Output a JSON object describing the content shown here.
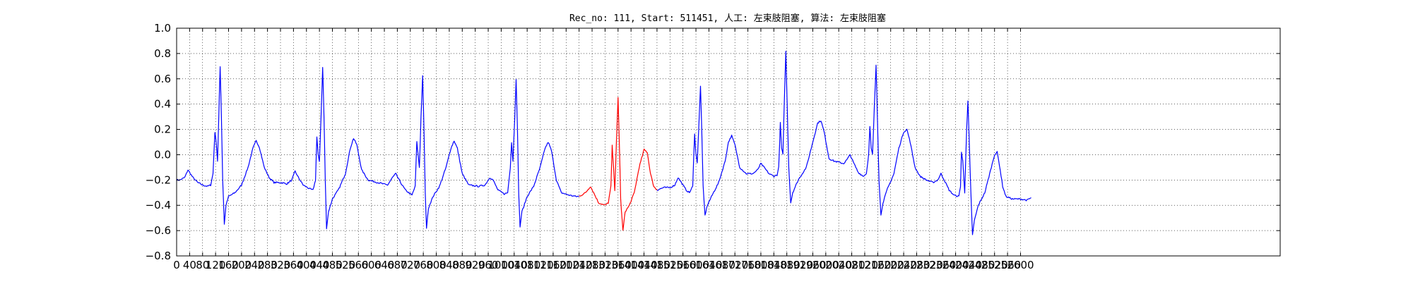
{
  "chart_data": {
    "type": "line",
    "title": "Rec_no: 111, Start: 511451, 人工: 左束肢阻塞, 算法: 左束肢阻塞",
    "xlabel": "",
    "ylabel": "",
    "xlim": [
      0,
      3400
    ],
    "ylim": [
      -0.8,
      1.0
    ],
    "grid": true,
    "grid_style": "dotted",
    "x_tick_values": [
      0,
      40,
      80,
      120,
      160,
      200,
      240,
      280,
      320,
      360,
      400,
      440,
      480,
      520,
      560,
      600,
      640,
      680,
      720,
      760,
      800,
      840,
      880,
      920,
      960,
      1000,
      1040,
      1080,
      1120,
      1160,
      1200,
      1240,
      1280,
      1320,
      1360,
      1400,
      1440,
      1480,
      1520,
      1560,
      1600,
      1640,
      1680,
      1720,
      1760,
      1800,
      1840,
      1880,
      1920,
      1960,
      2000,
      2040,
      2080,
      2120,
      2160,
      2200,
      2240,
      2280,
      2320,
      2360,
      2400,
      2440,
      2480,
      2520,
      2560,
      2600
    ],
    "x_tick_labels": [
      "0",
      "40",
      "80",
      "120",
      "160",
      "200",
      "240",
      "280",
      "320",
      "360",
      "400",
      "440",
      "480",
      "520",
      "560",
      "600",
      "640",
      "680",
      "720",
      "760",
      "800",
      "840",
      "880",
      "920",
      "960",
      "1000",
      "1040",
      "1080",
      "1120",
      "1160",
      "1200",
      "1240",
      "1280",
      "1320",
      "1360",
      "1400",
      "1440",
      "1480",
      "1520",
      "1560",
      "1600",
      "1640",
      "1680",
      "1720",
      "1760",
      "1800",
      "1840",
      "1880",
      "1920",
      "1960",
      "2000",
      "2040",
      "2080",
      "2120",
      "2160",
      "2200",
      "2240",
      "2280",
      "2320",
      "2360",
      "2400",
      "2440",
      "2480",
      "2520",
      "2560",
      "2600"
    ],
    "y_ticks": [
      -0.8,
      -0.6,
      -0.4,
      -0.2,
      0.0,
      0.2,
      0.4,
      0.6,
      0.8,
      1.0
    ],
    "y_tick_labels": [
      "−0.8",
      "−0.6",
      "−0.4",
      "−0.2",
      "0.0",
      "0.2",
      "0.4",
      "0.6",
      "0.8",
      "1.0"
    ],
    "series": [
      {
        "color": "#0000ff",
        "points": [
          [
            0,
            -0.2
          ],
          [
            10,
            -0.2
          ],
          [
            25,
            -0.18
          ],
          [
            35,
            -0.12
          ],
          [
            50,
            -0.18
          ],
          [
            65,
            -0.22
          ],
          [
            80,
            -0.24
          ],
          [
            95,
            -0.25
          ],
          [
            105,
            -0.24
          ],
          [
            112,
            -0.15
          ],
          [
            118,
            0.18
          ],
          [
            122,
            0.1
          ],
          [
            126,
            -0.05
          ],
          [
            130,
            0.3
          ],
          [
            134,
            0.7
          ],
          [
            138,
            0.3
          ],
          [
            142,
            -0.2
          ],
          [
            147,
            -0.55
          ],
          [
            152,
            -0.4
          ],
          [
            160,
            -0.33
          ],
          [
            180,
            -0.3
          ],
          [
            200,
            -0.24
          ],
          [
            220,
            -0.1
          ],
          [
            235,
            0.05
          ],
          [
            245,
            0.11
          ],
          [
            255,
            0.06
          ],
          [
            270,
            -0.1
          ],
          [
            285,
            -0.18
          ],
          [
            300,
            -0.22
          ],
          [
            320,
            -0.22
          ],
          [
            340,
            -0.23
          ],
          [
            355,
            -0.2
          ],
          [
            365,
            -0.13
          ],
          [
            375,
            -0.18
          ],
          [
            390,
            -0.24
          ],
          [
            410,
            -0.27
          ],
          [
            420,
            -0.28
          ],
          [
            428,
            -0.2
          ],
          [
            432,
            0.14
          ],
          [
            436,
            0.0
          ],
          [
            440,
            -0.05
          ],
          [
            445,
            0.3
          ],
          [
            450,
            0.69
          ],
          [
            454,
            0.3
          ],
          [
            458,
            -0.2
          ],
          [
            462,
            -0.58
          ],
          [
            468,
            -0.45
          ],
          [
            480,
            -0.35
          ],
          [
            500,
            -0.27
          ],
          [
            520,
            -0.15
          ],
          [
            535,
            0.05
          ],
          [
            545,
            0.13
          ],
          [
            555,
            0.08
          ],
          [
            570,
            -0.12
          ],
          [
            590,
            -0.2
          ],
          [
            620,
            -0.22
          ],
          [
            650,
            -0.24
          ],
          [
            665,
            -0.18
          ],
          [
            675,
            -0.15
          ],
          [
            690,
            -0.22
          ],
          [
            705,
            -0.28
          ],
          [
            725,
            -0.32
          ],
          [
            735,
            -0.25
          ],
          [
            740,
            0.1
          ],
          [
            744,
            0.0
          ],
          [
            748,
            -0.1
          ],
          [
            753,
            0.3
          ],
          [
            758,
            0.62
          ],
          [
            762,
            0.2
          ],
          [
            766,
            -0.3
          ],
          [
            770,
            -0.58
          ],
          [
            776,
            -0.42
          ],
          [
            790,
            -0.33
          ],
          [
            810,
            -0.25
          ],
          [
            830,
            -0.1
          ],
          [
            845,
            0.05
          ],
          [
            855,
            0.11
          ],
          [
            865,
            0.05
          ],
          [
            880,
            -0.15
          ],
          [
            900,
            -0.24
          ],
          [
            930,
            -0.25
          ],
          [
            950,
            -0.24
          ],
          [
            965,
            -0.18
          ],
          [
            975,
            -0.2
          ],
          [
            990,
            -0.28
          ],
          [
            1010,
            -0.31
          ],
          [
            1020,
            -0.3
          ],
          [
            1028,
            -0.1
          ],
          [
            1032,
            0.1
          ],
          [
            1036,
            -0.05
          ],
          [
            1042,
            0.3
          ],
          [
            1046,
            0.6
          ],
          [
            1050,
            0.2
          ],
          [
            1054,
            -0.3
          ],
          [
            1058,
            -0.57
          ],
          [
            1064,
            -0.45
          ],
          [
            1080,
            -0.33
          ],
          [
            1100,
            -0.25
          ],
          [
            1120,
            -0.1
          ],
          [
            1135,
            0.05
          ],
          [
            1145,
            0.1
          ],
          [
            1155,
            0.03
          ],
          [
            1170,
            -0.2
          ],
          [
            1185,
            -0.3
          ],
          [
            1210,
            -0.32
          ],
          [
            1230,
            -0.33
          ],
          [
            1240,
            -0.33
          ]
        ]
      },
      {
        "color": "#ff0000",
        "points": [
          [
            1240,
            -0.33
          ],
          [
            1260,
            -0.3
          ],
          [
            1275,
            -0.25
          ],
          [
            1285,
            -0.3
          ],
          [
            1300,
            -0.38
          ],
          [
            1320,
            -0.4
          ],
          [
            1330,
            -0.38
          ],
          [
            1338,
            -0.25
          ],
          [
            1342,
            0.07
          ],
          [
            1346,
            -0.1
          ],
          [
            1350,
            -0.28
          ],
          [
            1355,
            0.1
          ],
          [
            1360,
            0.45
          ],
          [
            1364,
            0.1
          ],
          [
            1368,
            -0.35
          ],
          [
            1375,
            -0.6
          ],
          [
            1382,
            -0.45
          ],
          [
            1395,
            -0.4
          ],
          [
            1410,
            -0.3
          ],
          [
            1425,
            -0.1
          ],
          [
            1440,
            0.04
          ],
          [
            1450,
            0.02
          ],
          [
            1460,
            -0.15
          ],
          [
            1470,
            -0.25
          ],
          [
            1480,
            -0.28
          ]
        ]
      },
      {
        "color": "#0000ff",
        "points": [
          [
            1480,
            -0.28
          ],
          [
            1500,
            -0.26
          ],
          [
            1520,
            -0.26
          ],
          [
            1535,
            -0.24
          ],
          [
            1545,
            -0.18
          ],
          [
            1555,
            -0.22
          ],
          [
            1570,
            -0.28
          ],
          [
            1580,
            -0.3
          ],
          [
            1590,
            -0.25
          ],
          [
            1596,
            0.17
          ],
          [
            1600,
            0.0
          ],
          [
            1604,
            -0.06
          ],
          [
            1610,
            0.3
          ],
          [
            1614,
            0.54
          ],
          [
            1618,
            0.2
          ],
          [
            1622,
            -0.25
          ],
          [
            1628,
            -0.48
          ],
          [
            1635,
            -0.4
          ],
          [
            1650,
            -0.32
          ],
          [
            1670,
            -0.22
          ],
          [
            1690,
            -0.05
          ],
          [
            1700,
            0.1
          ],
          [
            1710,
            0.15
          ],
          [
            1720,
            0.08
          ],
          [
            1735,
            -0.1
          ],
          [
            1755,
            -0.15
          ],
          [
            1775,
            -0.15
          ],
          [
            1790,
            -0.12
          ],
          [
            1800,
            -0.07
          ],
          [
            1810,
            -0.1
          ],
          [
            1825,
            -0.15
          ],
          [
            1840,
            -0.17
          ],
          [
            1850,
            -0.16
          ],
          [
            1855,
            -0.1
          ],
          [
            1860,
            0.25
          ],
          [
            1864,
            0.05
          ],
          [
            1868,
            0.0
          ],
          [
            1872,
            0.4
          ],
          [
            1877,
            0.82
          ],
          [
            1881,
            0.4
          ],
          [
            1886,
            -0.1
          ],
          [
            1892,
            -0.38
          ],
          [
            1898,
            -0.3
          ],
          [
            1915,
            -0.2
          ],
          [
            1940,
            -0.1
          ],
          [
            1960,
            0.1
          ],
          [
            1975,
            0.25
          ],
          [
            1985,
            0.27
          ],
          [
            1995,
            0.18
          ],
          [
            2010,
            -0.03
          ],
          [
            2025,
            -0.05
          ],
          [
            2040,
            -0.06
          ],
          [
            2055,
            -0.07
          ],
          [
            2065,
            -0.04
          ],
          [
            2075,
            0.0
          ],
          [
            2085,
            -0.06
          ],
          [
            2100,
            -0.14
          ],
          [
            2115,
            -0.17
          ],
          [
            2125,
            -0.15
          ],
          [
            2132,
            0.0
          ],
          [
            2136,
            0.22
          ],
          [
            2140,
            0.05
          ],
          [
            2144,
            0.0
          ],
          [
            2150,
            0.4
          ],
          [
            2155,
            0.71
          ],
          [
            2159,
            0.3
          ],
          [
            2164,
            -0.2
          ],
          [
            2170,
            -0.48
          ],
          [
            2176,
            -0.38
          ],
          [
            2190,
            -0.27
          ],
          [
            2210,
            -0.15
          ],
          [
            2225,
            0.05
          ],
          [
            2240,
            0.18
          ],
          [
            2250,
            0.2
          ],
          [
            2260,
            0.1
          ],
          [
            2275,
            -0.1
          ],
          [
            2290,
            -0.17
          ],
          [
            2310,
            -0.2
          ],
          [
            2330,
            -0.22
          ],
          [
            2345,
            -0.2
          ],
          [
            2355,
            -0.15
          ],
          [
            2365,
            -0.2
          ],
          [
            2380,
            -0.28
          ],
          [
            2395,
            -0.32
          ],
          [
            2410,
            -0.33
          ],
          [
            2415,
            -0.25
          ],
          [
            2418,
            0.02
          ],
          [
            2422,
            -0.05
          ],
          [
            2428,
            -0.3
          ],
          [
            2434,
            0.2
          ],
          [
            2438,
            0.42
          ],
          [
            2442,
            0.1
          ],
          [
            2447,
            -0.3
          ],
          [
            2452,
            -0.63
          ],
          [
            2458,
            -0.52
          ],
          [
            2470,
            -0.4
          ],
          [
            2490,
            -0.3
          ],
          [
            2505,
            -0.15
          ],
          [
            2520,
            0.0
          ],
          [
            2528,
            0.02
          ],
          [
            2535,
            -0.08
          ],
          [
            2545,
            -0.25
          ],
          [
            2555,
            -0.33
          ],
          [
            2575,
            -0.35
          ],
          [
            2600,
            -0.35
          ],
          [
            2620,
            -0.36
          ],
          [
            2633,
            -0.34
          ]
        ]
      }
    ]
  }
}
